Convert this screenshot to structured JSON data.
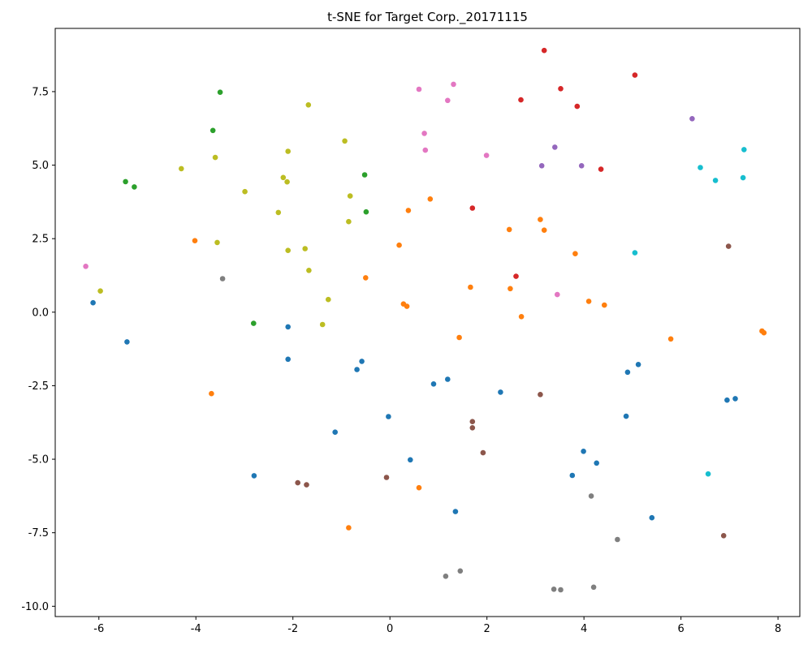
{
  "chart_data": {
    "type": "scatter",
    "title": "t-SNE for Target Corp._20171115",
    "xlabel": "",
    "ylabel": "",
    "xlim": [
      -6.9,
      8.45
    ],
    "ylim": [
      -10.35,
      9.65
    ],
    "xticks": [
      -6,
      -4,
      -2,
      0,
      2,
      4,
      6,
      8
    ],
    "yticks": [
      -10.0,
      -7.5,
      -5.0,
      -2.5,
      0.0,
      2.5,
      5.0,
      7.5
    ],
    "grid": false,
    "legend": "none",
    "series": [
      {
        "color": "#1f77b4",
        "points": [
          [
            -6.12,
            0.32
          ],
          [
            -5.42,
            -1.01
          ],
          [
            -2.8,
            -5.56
          ],
          [
            -2.1,
            -0.5
          ],
          [
            -2.1,
            -1.6
          ],
          [
            -1.13,
            -4.08
          ],
          [
            -0.68,
            -1.95
          ],
          [
            -0.58,
            -1.67
          ],
          [
            -0.03,
            -3.55
          ],
          [
            0.42,
            -5.02
          ],
          [
            0.9,
            -2.44
          ],
          [
            1.19,
            -2.28
          ],
          [
            1.35,
            -6.78
          ],
          [
            2.28,
            -2.72
          ],
          [
            3.76,
            -5.55
          ],
          [
            3.99,
            -4.73
          ],
          [
            4.26,
            -5.13
          ],
          [
            4.87,
            -3.54
          ],
          [
            4.9,
            -2.04
          ],
          [
            5.12,
            -1.78
          ],
          [
            5.4,
            -6.99
          ],
          [
            6.95,
            -2.99
          ],
          [
            7.12,
            -2.94
          ]
        ]
      },
      {
        "color": "#ff7f0e",
        "points": [
          [
            -4.02,
            2.43
          ],
          [
            -3.68,
            -2.77
          ],
          [
            -0.5,
            1.17
          ],
          [
            -0.85,
            -7.33
          ],
          [
            0.19,
            2.28
          ],
          [
            0.28,
            0.28
          ],
          [
            0.35,
            0.2
          ],
          [
            0.38,
            3.46
          ],
          [
            0.6,
            -5.97
          ],
          [
            0.83,
            3.85
          ],
          [
            1.43,
            -0.86
          ],
          [
            1.66,
            0.85
          ],
          [
            2.46,
            2.81
          ],
          [
            2.48,
            0.8
          ],
          [
            2.71,
            -0.15
          ],
          [
            3.1,
            3.15
          ],
          [
            3.18,
            2.79
          ],
          [
            3.82,
            1.99
          ],
          [
            4.1,
            0.37
          ],
          [
            4.42,
            0.24
          ],
          [
            5.79,
            -0.91
          ],
          [
            7.67,
            -0.64
          ],
          [
            7.71,
            -0.7
          ]
        ]
      },
      {
        "color": "#2ca02c",
        "points": [
          [
            -5.45,
            4.44
          ],
          [
            -5.27,
            4.26
          ],
          [
            -3.65,
            6.18
          ],
          [
            -3.5,
            7.48
          ],
          [
            -2.81,
            -0.38
          ],
          [
            -0.52,
            4.67
          ],
          [
            -0.49,
            3.41
          ]
        ]
      },
      {
        "color": "#d62728",
        "points": [
          [
            3.18,
            8.9
          ],
          [
            5.05,
            8.06
          ],
          [
            3.52,
            7.6
          ],
          [
            2.7,
            7.22
          ],
          [
            3.86,
            7.0
          ],
          [
            4.35,
            4.86
          ],
          [
            1.7,
            3.54
          ],
          [
            2.6,
            1.22
          ]
        ]
      },
      {
        "color": "#9467bd",
        "points": [
          [
            6.23,
            6.58
          ],
          [
            3.4,
            5.61
          ],
          [
            3.13,
            4.98
          ],
          [
            3.95,
            4.98
          ]
        ]
      },
      {
        "color": "#8c564b",
        "points": [
          [
            6.98,
            2.24
          ],
          [
            3.1,
            -2.8
          ],
          [
            1.7,
            -3.72
          ],
          [
            1.7,
            -3.93
          ],
          [
            1.92,
            -4.78
          ],
          [
            -0.07,
            -5.62
          ],
          [
            -1.9,
            -5.8
          ],
          [
            -1.72,
            -5.87
          ],
          [
            6.88,
            -7.6
          ]
        ]
      },
      {
        "color": "#e377c2",
        "points": [
          [
            0.6,
            7.58
          ],
          [
            1.31,
            7.75
          ],
          [
            1.19,
            7.2
          ],
          [
            0.71,
            6.08
          ],
          [
            0.73,
            5.51
          ],
          [
            1.99,
            5.33
          ],
          [
            -6.27,
            1.56
          ],
          [
            3.45,
            0.6
          ]
        ]
      },
      {
        "color": "#7f7f7f",
        "points": [
          [
            -3.45,
            1.14
          ],
          [
            4.15,
            -6.25
          ],
          [
            4.69,
            -7.73
          ],
          [
            1.45,
            -8.8
          ],
          [
            1.15,
            -8.98
          ],
          [
            3.38,
            -9.42
          ],
          [
            3.52,
            -9.44
          ],
          [
            4.2,
            -9.35
          ]
        ]
      },
      {
        "color": "#bcbd22",
        "points": [
          [
            -5.97,
            0.72
          ],
          [
            -4.3,
            4.88
          ],
          [
            -3.6,
            5.26
          ],
          [
            -3.56,
            2.37
          ],
          [
            -2.99,
            4.1
          ],
          [
            -2.3,
            3.39
          ],
          [
            -2.2,
            4.58
          ],
          [
            -2.12,
            4.43
          ],
          [
            -2.1,
            5.47
          ],
          [
            -2.1,
            2.1
          ],
          [
            -1.75,
            2.16
          ],
          [
            -1.68,
            7.05
          ],
          [
            -1.67,
            1.42
          ],
          [
            -1.27,
            0.43
          ],
          [
            -1.39,
            -0.42
          ],
          [
            -0.93,
            5.82
          ],
          [
            -0.82,
            3.95
          ],
          [
            -0.85,
            3.08
          ]
        ]
      },
      {
        "color": "#17becf",
        "points": [
          [
            7.3,
            5.53
          ],
          [
            6.4,
            4.92
          ],
          [
            6.71,
            4.48
          ],
          [
            7.28,
            4.57
          ],
          [
            5.05,
            2.02
          ],
          [
            6.56,
            -5.5
          ]
        ]
      }
    ]
  }
}
